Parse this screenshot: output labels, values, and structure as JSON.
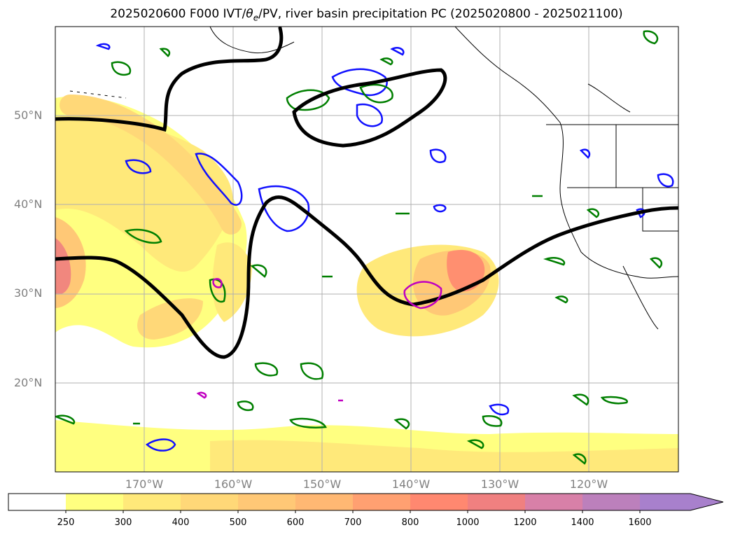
{
  "title_text": "2025020600 F000 IVT/",
  "title_theta": "θ",
  "title_sub": "e",
  "title_rest": "/PV, river basin precipitation PC (2025020800 - 2025021100)",
  "map": {
    "projection": "equirectangular",
    "lon_range_deg_east": [
      -180,
      -110
    ],
    "lat_range_deg": [
      10,
      60
    ],
    "gridlines": true,
    "lat_labels": [
      "50°N",
      "40°N",
      "30°N",
      "20°N"
    ],
    "lon_labels": [
      "170°W",
      "160°W",
      "150°W",
      "140°W",
      "130°W",
      "120°W"
    ],
    "fields": [
      {
        "name": "IVT",
        "style": "filled contours",
        "colors": "yellow to purple"
      },
      {
        "name": "PV",
        "style": "thick contour",
        "color": "#000000"
      },
      {
        "name": "theta_e",
        "style": "contours",
        "colors": [
          "#1010ff",
          "#007f00"
        ]
      },
      {
        "name": "precipitation PC",
        "style": "contours",
        "color": "#c000c0"
      }
    ]
  },
  "colorbar": {
    "extend": "max",
    "labels": [
      "250",
      "300",
      "400",
      "500",
      "600",
      "700",
      "800",
      "1000",
      "1200",
      "1400",
      "1600"
    ],
    "colors": [
      "#ffffff",
      "#ffff80",
      "#ffe97a",
      "#ffd878",
      "#ffc876",
      "#ffb873",
      "#ffa071",
      "#ff8870",
      "#f08080",
      "#d880a8",
      "#bc80bc",
      "#a880cc"
    ]
  }
}
